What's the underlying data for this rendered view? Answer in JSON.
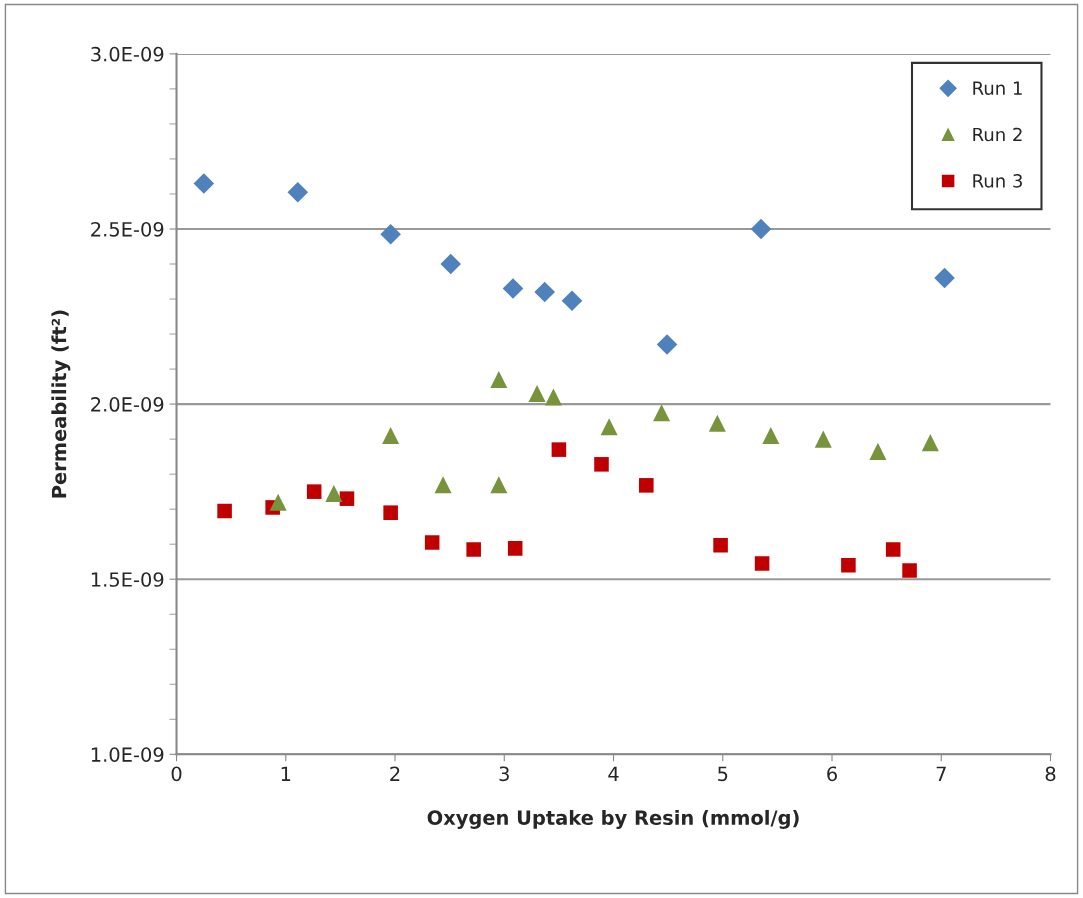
{
  "chart_data": {
    "type": "scatter",
    "xlabel": "Oxygen Uptake by Resin (mmol/g)",
    "ylabel": "Permeability (ft²)",
    "xlim": [
      0,
      8
    ],
    "xticks": [
      0,
      1,
      2,
      3,
      4,
      5,
      6,
      7,
      8
    ],
    "ylim": [
      1e-09,
      3e-09
    ],
    "yticks": [
      {
        "value": 1e-09,
        "label": "1.0E-09"
      },
      {
        "value": 1.5e-09,
        "label": "1.5E-09"
      },
      {
        "value": 2e-09,
        "label": "2.0E-09"
      },
      {
        "value": 2.5e-09,
        "label": "2.5E-09"
      },
      {
        "value": 3e-09,
        "label": "3.0E-09"
      }
    ],
    "grid": "y",
    "legend": "top right",
    "series": [
      {
        "name": "Run 1",
        "color": "#4f81bd",
        "marker": "diamond",
        "x": [
          0.25,
          1.11,
          1.96,
          2.51,
          3.08,
          3.37,
          3.62,
          4.49,
          5.35,
          7.03
        ],
        "values": [
          2.63e-09,
          2.605e-09,
          2.485e-09,
          2.4e-09,
          2.33e-09,
          2.32e-09,
          2.295e-09,
          2.17e-09,
          2.5e-09,
          2.36e-09
        ]
      },
      {
        "name": "Run 2",
        "color": "#77933c",
        "marker": "triangle",
        "x": [
          0.93,
          1.44,
          1.96,
          2.44,
          2.95,
          2.95,
          3.3,
          3.45,
          3.96,
          4.44,
          4.95,
          5.44,
          5.92,
          6.42,
          6.9
        ],
        "values": [
          1.72e-09,
          1.745e-09,
          1.91e-09,
          1.77e-09,
          1.77e-09,
          2.07e-09,
          2.03e-09,
          2.02e-09,
          1.935e-09,
          1.975e-09,
          1.945e-09,
          1.91e-09,
          1.9e-09,
          1.865e-09,
          1.89e-09
        ]
      },
      {
        "name": "Run 3",
        "color": "#c00000",
        "marker": "square",
        "x": [
          0.44,
          0.88,
          1.26,
          1.56,
          1.96,
          2.34,
          2.72,
          3.1,
          3.5,
          3.89,
          4.3,
          4.98,
          5.36,
          6.15,
          6.56,
          6.71
        ],
        "values": [
          1.695e-09,
          1.705e-09,
          1.75e-09,
          1.73e-09,
          1.69e-09,
          1.605e-09,
          1.585e-09,
          1.588e-09,
          1.87e-09,
          1.828e-09,
          1.768e-09,
          1.597e-09,
          1.545e-09,
          1.54e-09,
          1.585e-09,
          1.525e-09
        ]
      }
    ]
  }
}
